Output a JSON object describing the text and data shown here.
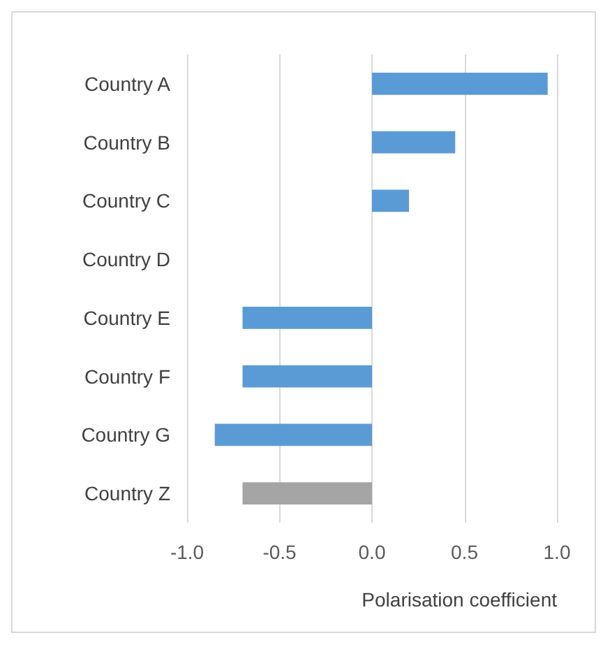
{
  "chart_data": {
    "type": "bar",
    "orientation": "horizontal",
    "xlabel": "Polarisation coefficient",
    "categories": [
      "Country A",
      "Country B",
      "Country C",
      "Country D",
      "Country E",
      "Country F",
      "Country G",
      "Country Z"
    ],
    "values": [
      0.95,
      0.45,
      0.2,
      0,
      -0.7,
      -0.7,
      -0.85,
      -0.7
    ],
    "colors": [
      "#5b9bd5",
      "#5b9bd5",
      "#5b9bd5",
      "#5b9bd5",
      "#5b9bd5",
      "#5b9bd5",
      "#5b9bd5",
      "#a5a5a5"
    ],
    "xlim": [
      -1,
      1
    ],
    "xticks": [
      {
        "value": -1,
        "label": "-1.0"
      },
      {
        "value": -0.5,
        "label": "-0.5"
      },
      {
        "value": 0,
        "label": "0.0"
      },
      {
        "value": 0.5,
        "label": "0.5"
      },
      {
        "value": 1,
        "label": "1.0"
      }
    ],
    "grid": "x"
  }
}
